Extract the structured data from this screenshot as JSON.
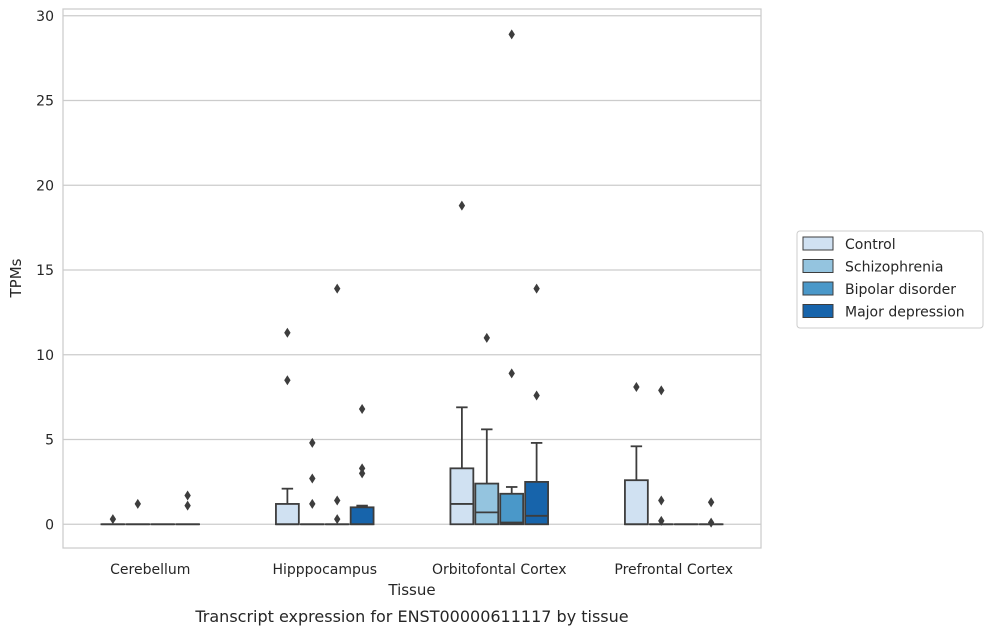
{
  "chart_data": {
    "type": "box",
    "title": "Transcript expression for ENST00000611117 by tissue",
    "xlabel": "Tissue",
    "ylabel": "TPMs",
    "ylim": [
      -1.4,
      30.4
    ],
    "yticks": [
      0,
      5,
      10,
      15,
      20,
      25,
      30
    ],
    "grid": true,
    "legend_position": "right",
    "categories": [
      "Cerebellum",
      "Hipppocampus",
      "Orbitofontal Cortex",
      "Prefrontal Cortex"
    ],
    "series": [
      {
        "name": "Control",
        "color": "#d0e1f2",
        "boxes": [
          {
            "category": "Cerebellum",
            "q1": 0,
            "median": 0,
            "q3": 0,
            "whisker_low": 0,
            "whisker_high": 0,
            "outliers": [
              0.3
            ]
          },
          {
            "category": "Hipppocampus",
            "q1": 0,
            "median": 0,
            "q3": 1.2,
            "whisker_low": 0,
            "whisker_high": 2.1,
            "outliers": [
              8.5,
              11.3
            ]
          },
          {
            "category": "Orbitofontal Cortex",
            "q1": 0,
            "median": 1.2,
            "q3": 3.3,
            "whisker_low": 0,
            "whisker_high": 6.9,
            "outliers": [
              18.8
            ]
          },
          {
            "category": "Prefrontal Cortex",
            "q1": 0,
            "median": 0,
            "q3": 2.6,
            "whisker_low": 0,
            "whisker_high": 4.6,
            "outliers": [
              8.1
            ]
          }
        ]
      },
      {
        "name": "Schizophrenia",
        "color": "#94c4df",
        "boxes": [
          {
            "category": "Cerebellum",
            "q1": 0,
            "median": 0,
            "q3": 0,
            "whisker_low": 0,
            "whisker_high": 0,
            "outliers": [
              1.2
            ]
          },
          {
            "category": "Hipppocampus",
            "q1": 0,
            "median": 0,
            "q3": 0,
            "whisker_low": 0,
            "whisker_high": 0,
            "outliers": [
              1.2,
              2.7,
              4.8
            ]
          },
          {
            "category": "Orbitofontal Cortex",
            "q1": 0,
            "median": 0.7,
            "q3": 2.4,
            "whisker_low": 0,
            "whisker_high": 5.6,
            "outliers": [
              11.0
            ]
          },
          {
            "category": "Prefrontal Cortex",
            "q1": 0,
            "median": 0,
            "q3": 0,
            "whisker_low": 0,
            "whisker_high": 0,
            "outliers": [
              0.2,
              1.4,
              7.9
            ]
          }
        ]
      },
      {
        "name": "Bipolar disorder",
        "color": "#4a98c9",
        "boxes": [
          {
            "category": "Cerebellum",
            "q1": 0,
            "median": 0,
            "q3": 0,
            "whisker_low": 0,
            "whisker_high": 0,
            "outliers": []
          },
          {
            "category": "Hipppocampus",
            "q1": 0,
            "median": 0,
            "q3": 0,
            "whisker_low": 0,
            "whisker_high": 0,
            "outliers": [
              0.3,
              1.4,
              13.9
            ]
          },
          {
            "category": "Orbitofontal Cortex",
            "q1": 0,
            "median": 0.1,
            "q3": 1.8,
            "whisker_low": 0,
            "whisker_high": 2.2,
            "outliers": [
              8.9,
              28.9
            ]
          },
          {
            "category": "Prefrontal Cortex",
            "q1": 0,
            "median": 0,
            "q3": 0,
            "whisker_low": 0,
            "whisker_high": 0,
            "outliers": []
          }
        ]
      },
      {
        "name": "Major depression",
        "color": "#1764ab",
        "boxes": [
          {
            "category": "Cerebellum",
            "q1": 0,
            "median": 0,
            "q3": 0,
            "whisker_low": 0,
            "whisker_high": 0,
            "outliers": [
              1.1,
              1.7
            ]
          },
          {
            "category": "Hipppocampus",
            "q1": 0,
            "median": 0,
            "q3": 1.0,
            "whisker_low": 0,
            "whisker_high": 1.1,
            "outliers": [
              3.0,
              3.3,
              6.8
            ]
          },
          {
            "category": "Orbitofontal Cortex",
            "q1": 0,
            "median": 0.5,
            "q3": 2.5,
            "whisker_low": 0,
            "whisker_high": 4.8,
            "outliers": [
              7.6,
              13.9
            ]
          },
          {
            "category": "Prefrontal Cortex",
            "q1": 0,
            "median": 0,
            "q3": 0,
            "whisker_low": 0,
            "whisker_high": 0,
            "outliers": [
              0.1,
              1.3
            ]
          }
        ]
      }
    ]
  }
}
